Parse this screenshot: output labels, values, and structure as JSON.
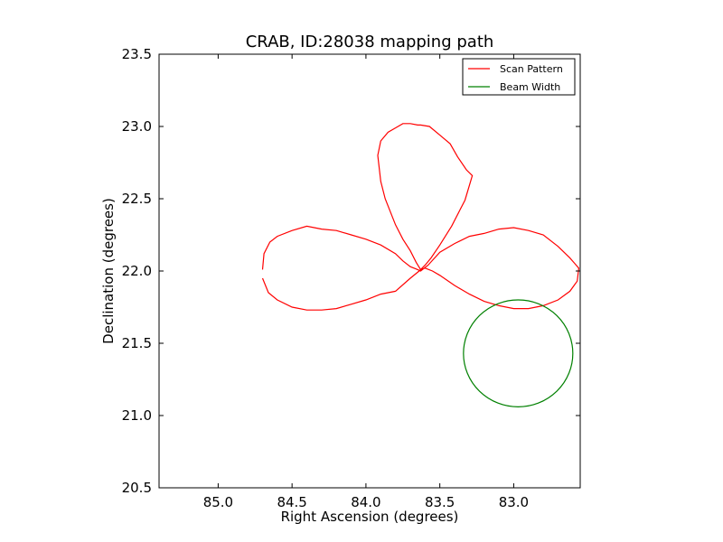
{
  "chart_data": {
    "type": "line",
    "title": "CRAB, ID:28038 mapping path",
    "xlabel": "Right Ascension (degrees)",
    "ylabel": "Declination (degrees)",
    "xlim": [
      85.4,
      82.55
    ],
    "ylim": [
      20.5,
      23.5
    ],
    "x_inverted": true,
    "xticks": [
      "85.0",
      "84.5",
      "84.0",
      "83.5",
      "83.0"
    ],
    "xtick_values": [
      85.0,
      84.5,
      84.0,
      83.5,
      83.0
    ],
    "yticks": [
      "20.5",
      "21.0",
      "21.5",
      "22.0",
      "22.5",
      "23.0",
      "23.5"
    ],
    "ytick_values": [
      20.5,
      21.0,
      21.5,
      22.0,
      22.5,
      23.0,
      23.5
    ],
    "grid": false,
    "legend": "top-right",
    "series": [
      {
        "name": "Scan Pattern",
        "color": "#ff0000",
        "x": [
          84.7,
          84.69,
          84.65,
          84.6,
          84.5,
          84.4,
          84.3,
          84.2,
          84.1,
          84.0,
          83.9,
          83.8,
          83.75,
          83.7,
          83.65,
          83.63,
          83.58,
          83.5,
          83.4,
          83.3,
          83.2,
          83.1,
          83.0,
          82.9,
          82.8,
          82.7,
          82.62,
          82.56,
          82.57,
          82.62,
          82.7,
          82.8,
          82.9,
          83.0,
          83.1,
          83.2,
          83.3,
          83.4,
          83.5,
          83.55,
          83.6,
          83.63,
          83.66,
          83.7,
          83.75,
          83.8,
          83.87,
          83.9,
          83.92,
          83.9,
          83.85,
          83.8,
          83.75,
          83.7,
          83.65,
          83.63,
          83.57,
          83.5,
          83.43,
          83.38,
          83.32,
          83.28,
          83.33,
          83.42,
          83.5,
          83.56,
          83.6,
          83.64,
          83.7,
          83.8,
          83.9,
          84.0,
          84.1,
          84.2,
          84.3,
          84.4,
          84.5,
          84.6,
          84.66,
          84.7
        ],
        "y": [
          22.01,
          22.12,
          22.2,
          22.24,
          22.28,
          22.31,
          22.29,
          22.28,
          22.25,
          22.22,
          22.18,
          22.12,
          22.07,
          22.03,
          22.01,
          22.0,
          22.04,
          22.13,
          22.19,
          22.24,
          22.26,
          22.29,
          22.3,
          22.28,
          22.25,
          22.17,
          22.09,
          22.02,
          21.93,
          21.86,
          21.8,
          21.76,
          21.74,
          21.74,
          21.76,
          21.79,
          21.84,
          21.9,
          21.97,
          22.0,
          22.02,
          22.01,
          22.06,
          22.14,
          22.22,
          22.32,
          22.5,
          22.62,
          22.8,
          22.9,
          22.96,
          22.99,
          23.02,
          23.02,
          23.01,
          23.01,
          23.0,
          22.94,
          22.88,
          22.79,
          22.7,
          22.66,
          22.49,
          22.31,
          22.18,
          22.09,
          22.04,
          22.0,
          21.95,
          21.86,
          21.84,
          21.8,
          21.77,
          21.74,
          21.73,
          21.73,
          21.75,
          21.8,
          21.85,
          21.95
        ]
      },
      {
        "name": "Beam Width",
        "color": "#008000",
        "shape": "circle",
        "center": [
          82.97,
          21.43
        ],
        "radius": 0.37
      }
    ]
  }
}
